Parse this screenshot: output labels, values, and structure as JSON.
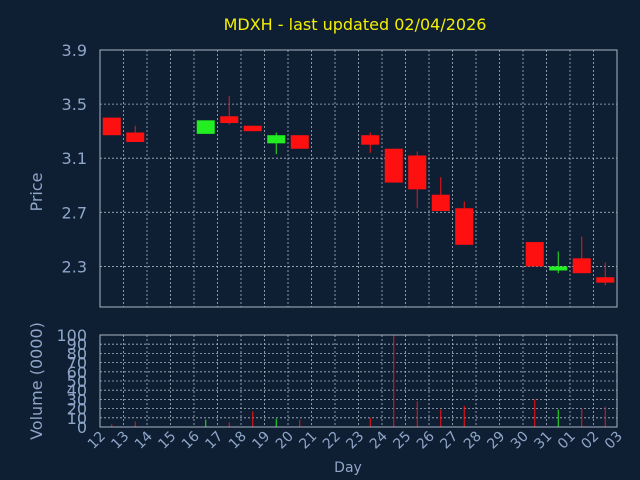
{
  "title": "MDXH - last updated 02/04/2026",
  "colors": {
    "background": "#0f1f33",
    "title": "#f4f000",
    "axis_text": "#8fa6c8",
    "grid": "#a9b4c4",
    "frame": "#a9b4c4",
    "up": "#22ee22",
    "down": "#ff1010"
  },
  "chart_data": [
    {
      "type": "candlestick",
      "ylabel": "Price",
      "ylim": [
        2.0,
        3.9
      ],
      "yticks": [
        2.3,
        2.7,
        3.1,
        3.5,
        3.9
      ],
      "grid": true,
      "candles": [
        {
          "day": "12",
          "open": 3.4,
          "close": 3.27,
          "high": 3.4,
          "low": 3.27
        },
        {
          "day": "13",
          "open": 3.29,
          "close": 3.22,
          "high": 3.34,
          "low": 3.22
        },
        {
          "day": "16",
          "open": 3.28,
          "close": 3.38,
          "high": 3.38,
          "low": 3.28
        },
        {
          "day": "17",
          "open": 3.41,
          "close": 3.36,
          "high": 3.56,
          "low": 3.35
        },
        {
          "day": "18",
          "open": 3.34,
          "close": 3.3,
          "high": 3.34,
          "low": 3.3
        },
        {
          "day": "19",
          "open": 3.21,
          "close": 3.27,
          "high": 3.29,
          "low": 3.13
        },
        {
          "day": "20",
          "open": 3.27,
          "close": 3.17,
          "high": 3.27,
          "low": 3.17
        },
        {
          "day": "23",
          "open": 3.27,
          "close": 3.2,
          "high": 3.29,
          "low": 3.14
        },
        {
          "day": "24",
          "open": 3.17,
          "close": 2.92,
          "high": 3.17,
          "low": 2.92
        },
        {
          "day": "25",
          "open": 3.12,
          "close": 2.87,
          "high": 3.15,
          "low": 2.73
        },
        {
          "day": "26",
          "open": 2.83,
          "close": 2.71,
          "high": 2.96,
          "low": 2.71
        },
        {
          "day": "27",
          "open": 2.73,
          "close": 2.46,
          "high": 2.78,
          "low": 2.46
        },
        {
          "day": "30",
          "open": 2.48,
          "close": 2.3,
          "high": 2.48,
          "low": 2.3
        },
        {
          "day": "31",
          "open": 2.27,
          "close": 2.3,
          "high": 2.41,
          "low": 2.25
        },
        {
          "day": "01",
          "open": 2.36,
          "close": 2.25,
          "high": 2.52,
          "low": 2.25
        },
        {
          "day": "02",
          "open": 2.22,
          "close": 2.18,
          "high": 2.33,
          "low": 2.16
        }
      ]
    },
    {
      "type": "bar",
      "ylabel": "Volume (0000)",
      "xlabel": "Day",
      "ylim": [
        0,
        100
      ],
      "yticks": [
        0,
        10,
        20,
        30,
        40,
        50,
        60,
        70,
        80,
        90,
        100
      ],
      "categories": [
        "12",
        "13",
        "14",
        "15",
        "16",
        "17",
        "18",
        "19",
        "20",
        "21",
        "22",
        "23",
        "24",
        "25",
        "26",
        "27",
        "28",
        "29",
        "30",
        "31",
        "01",
        "02",
        "03"
      ],
      "values": [
        3,
        6,
        0,
        0,
        8,
        5,
        17,
        9,
        8,
        0,
        0,
        10,
        100,
        28,
        19,
        23,
        0,
        0,
        30,
        19,
        20,
        22,
        0
      ],
      "up_days": [
        "16",
        "19",
        "31"
      ]
    }
  ]
}
